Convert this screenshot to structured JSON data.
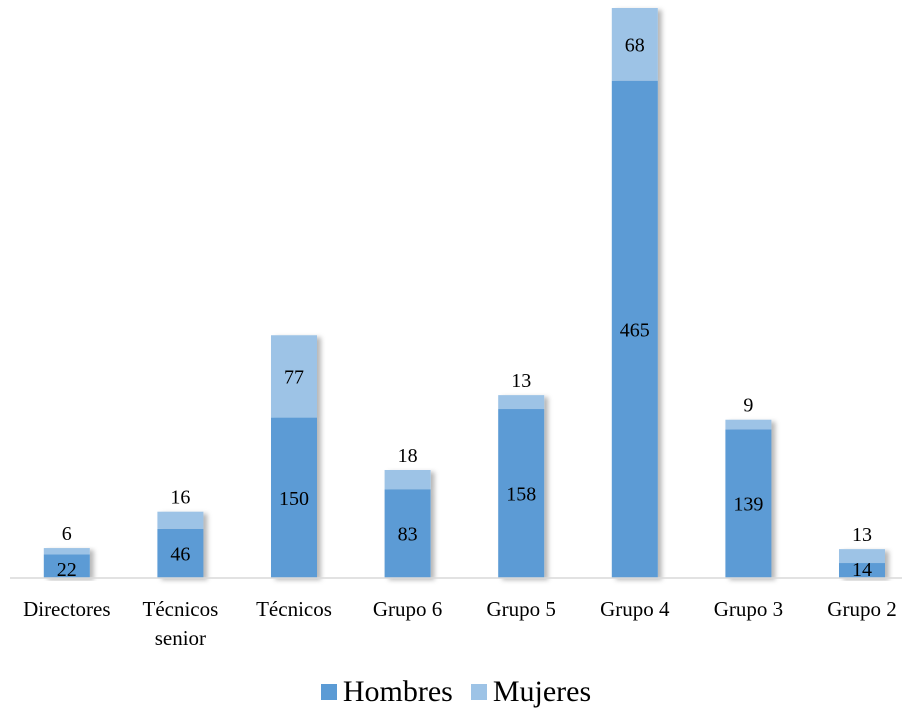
{
  "chart_data": {
    "type": "bar",
    "stacked": true,
    "categories": [
      "Directores",
      "Técnicos senior",
      "Técnicos",
      "Grupo 6",
      "Grupo 5",
      "Grupo 4",
      "Grupo 3",
      "Grupo 2"
    ],
    "series": [
      {
        "name": "Hombres",
        "color": "#5b9bd5",
        "values": [
          22,
          46,
          150,
          83,
          158,
          465,
          139,
          14
        ]
      },
      {
        "name": "Mujeres",
        "color": "#9dc3e6",
        "values": [
          6,
          16,
          77,
          18,
          13,
          68,
          9,
          13
        ]
      }
    ],
    "ylim": [
      0,
      533
    ],
    "grid": false,
    "legend_position": "bottom"
  }
}
